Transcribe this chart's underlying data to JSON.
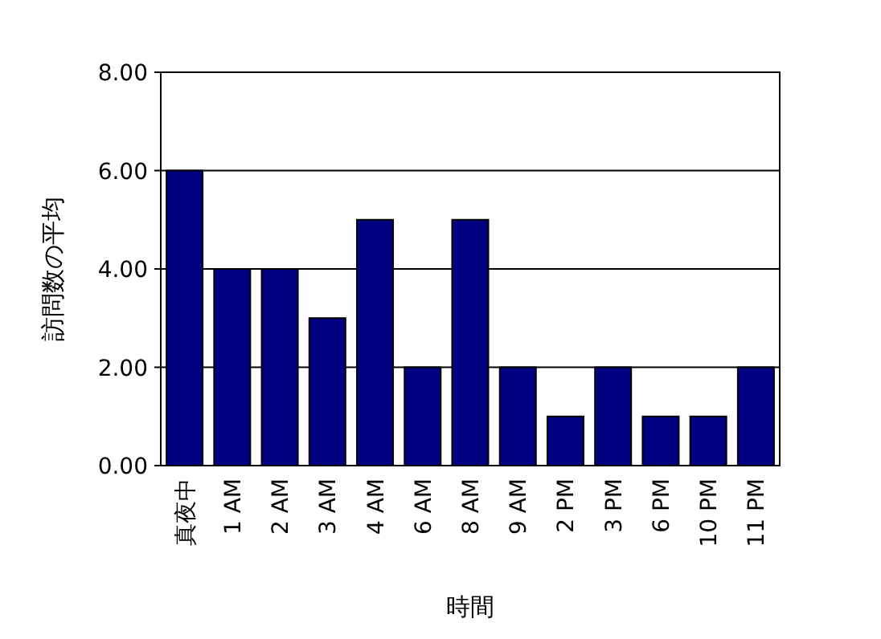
{
  "chart_data": {
    "type": "bar",
    "xlabel": "時間",
    "ylabel": "訪問数の平均",
    "categories": [
      "真夜中",
      "1 AM",
      "2 AM",
      "3 AM",
      "4 AM",
      "6 AM",
      "8 AM",
      "9 AM",
      "2 PM",
      "3 PM",
      "6 PM",
      "10 PM",
      "11 PM"
    ],
    "values": [
      6,
      4,
      4,
      3,
      5,
      2,
      5,
      2,
      1,
      2,
      1,
      1,
      2
    ],
    "color": "#000080",
    "ylim": [
      0,
      8
    ],
    "yticks": [
      {
        "value": 0,
        "label": "0.00"
      },
      {
        "value": 2,
        "label": "2.00"
      },
      {
        "value": 4,
        "label": "4.00"
      },
      {
        "value": 6,
        "label": "6.00"
      },
      {
        "value": 8,
        "label": "8.00"
      }
    ],
    "grid": "y"
  }
}
